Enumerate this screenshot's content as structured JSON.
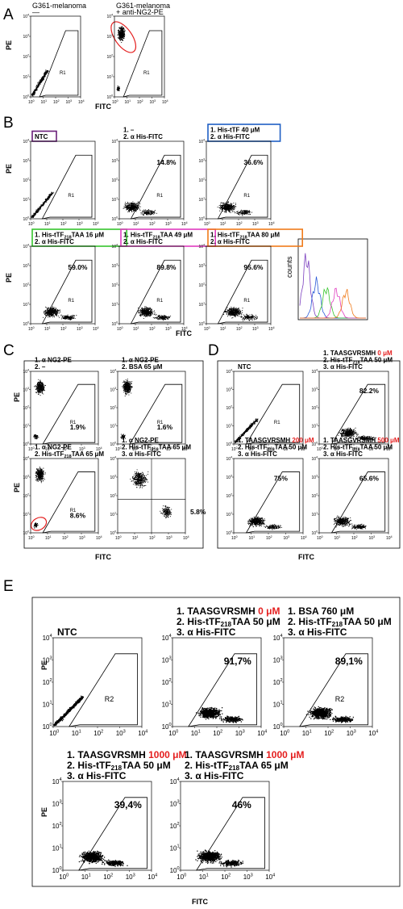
{
  "panels": [
    {
      "id": "A",
      "label": "A",
      "ylabel": "PE",
      "xlabel": "FITC"
    },
    {
      "id": "B",
      "label": "B",
      "ylabel_top": "PE",
      "ylabel_bottom": "PE",
      "xlabel": "FITC",
      "hist_ylabel": "counts"
    },
    {
      "id": "C",
      "label": "C",
      "ylabel": "PE",
      "xlabel": "FITC"
    },
    {
      "id": "D",
      "label": "D",
      "xlabel": "FITC"
    },
    {
      "id": "E",
      "label": "E",
      "ylabel_top": "PE",
      "ylabel_bottom": "PE",
      "xlabel": "FITC"
    }
  ],
  "ticks": {
    "exp": [
      "0",
      "1",
      "2",
      "3",
      "4"
    ],
    "base": "10"
  },
  "plots": [
    {
      "panel": "A",
      "title": "G361-melanoma",
      "title2": "—",
      "gate": "R1",
      "pct": "",
      "kind": "neg"
    },
    {
      "panel": "A",
      "title": "G361-melanoma",
      "title2": "+ anti-NG2-PE",
      "gate": "R1",
      "pct": "",
      "kind": "pe",
      "circle": "upper"
    },
    {
      "panel": "B",
      "lines": [
        "NTC"
      ],
      "box": "#6a1f7a",
      "gate": "R1",
      "pct": "",
      "kind": "neg"
    },
    {
      "panel": "B",
      "lines": [
        "1. –",
        "2. α His-FITC"
      ],
      "gate": "R1",
      "pct": "14.8%",
      "kind": "dim"
    },
    {
      "panel": "B",
      "lines": [
        "1. His-tTF 40 μM",
        "2. α His-FITC"
      ],
      "box": "#1f5fc4",
      "gate": "R1",
      "pct": "36.6%",
      "kind": "mid"
    },
    {
      "panel": "B",
      "lines": [
        "1. His-tTF218TAA 16 μM",
        "2. α His-FITC"
      ],
      "box": "#35c42c",
      "gate": "R1",
      "pct": "59.0%",
      "kind": "mid"
    },
    {
      "panel": "B",
      "lines": [
        "1. His-tTF218TAA 49 μM",
        "2. α His-FITC"
      ],
      "box": "#e03cc0",
      "gate": "R1",
      "pct": "89.8%",
      "kind": "high"
    },
    {
      "panel": "B",
      "lines": [
        "1. His-tTF218TAA 80 μM",
        "2. α His-FITC"
      ],
      "box": "#f07b1a",
      "gate": "R1",
      "pct": "95.6%",
      "kind": "high"
    },
    {
      "panel": "C",
      "lines": [
        "1. α NG2-PE",
        "2. –"
      ],
      "gate": "R1",
      "pct": "1.9%",
      "kind": "pe"
    },
    {
      "panel": "C",
      "lines": [
        "1. α NG2-PE",
        "2. BSA 65 μM"
      ],
      "gate": "R1",
      "pct": "1.6%",
      "kind": "pe"
    },
    {
      "panel": "C",
      "lines": [
        "1. α NG2-PE",
        "2. His-tTF218TAA 65 μM"
      ],
      "gate": "R1",
      "pct": "8.6%",
      "kind": "pe",
      "circle": "lower"
    },
    {
      "panel": "C",
      "lines": [
        "1. α NG2-PE",
        "2. His-tTF218TAA 65 μM",
        "3. α His-FITC"
      ],
      "gate": "",
      "pct": "5.8%",
      "kind": "quad"
    },
    {
      "panel": "D",
      "lines": [
        "NTC"
      ],
      "gate": "R1",
      "pct": "",
      "kind": "neg"
    },
    {
      "panel": "D",
      "lines": [
        "1. TAASGVRSMH 0 μM",
        "2. His-tTF218TAA 50 μM",
        "3. α His-FITC"
      ],
      "gate": "",
      "pct": "82.2%",
      "kind": "high"
    },
    {
      "panel": "D",
      "lines": [
        "1. TAASGVRSMH 200 μM",
        "2. His-tTF218TAA 50 μM",
        "3. α His-FITC"
      ],
      "gate": "",
      "pct": "75%",
      "kind": "mid"
    },
    {
      "panel": "D",
      "lines": [
        "1. TAASGVRSMH 500 μM",
        "2. His-tTF218TAA 50 μM",
        "3. α His-FITC"
      ],
      "gate": "",
      "pct": "65.6%",
      "kind": "mid"
    },
    {
      "panel": "E",
      "lines": [
        "NTC"
      ],
      "gate": "R2",
      "pct": "",
      "kind": "neg"
    },
    {
      "panel": "E",
      "lines": [
        "1. TAASGVRSMH 0 μM",
        "2. His-tTF218TAA 50 μM",
        "3. α His-FITC"
      ],
      "gate": "",
      "pct": "91,7%",
      "kind": "high"
    },
    {
      "panel": "E",
      "lines": [
        "1. BSA 760 μM",
        "2. His-tTF218TAA 50 μM",
        "3. α His-FITC"
      ],
      "gate": "R2",
      "pct": "89,1%",
      "kind": "high"
    },
    {
      "panel": "E",
      "lines": [
        "1. TAASGVRSMH 1000 μM",
        "2. His-tTF218TAA 50 μM",
        "3. α His-FITC"
      ],
      "gate": "",
      "pct": "39,4%",
      "kind": "mid"
    },
    {
      "panel": "E",
      "lines": [
        "1. TAASGVRSMH 1000 μM",
        "2. His-tTF218TAA 65 μM",
        "3. α His-FITC"
      ],
      "gate": "",
      "pct": "46%",
      "kind": "mid"
    }
  ],
  "colors": {
    "red_highlight": "#e41e1e",
    "hist_purple": "#7b3fbf",
    "hist_blue": "#2a5ad8",
    "hist_green": "#35c42c",
    "hist_magenta": "#e03cc0",
    "hist_orange": "#f07b1a"
  }
}
